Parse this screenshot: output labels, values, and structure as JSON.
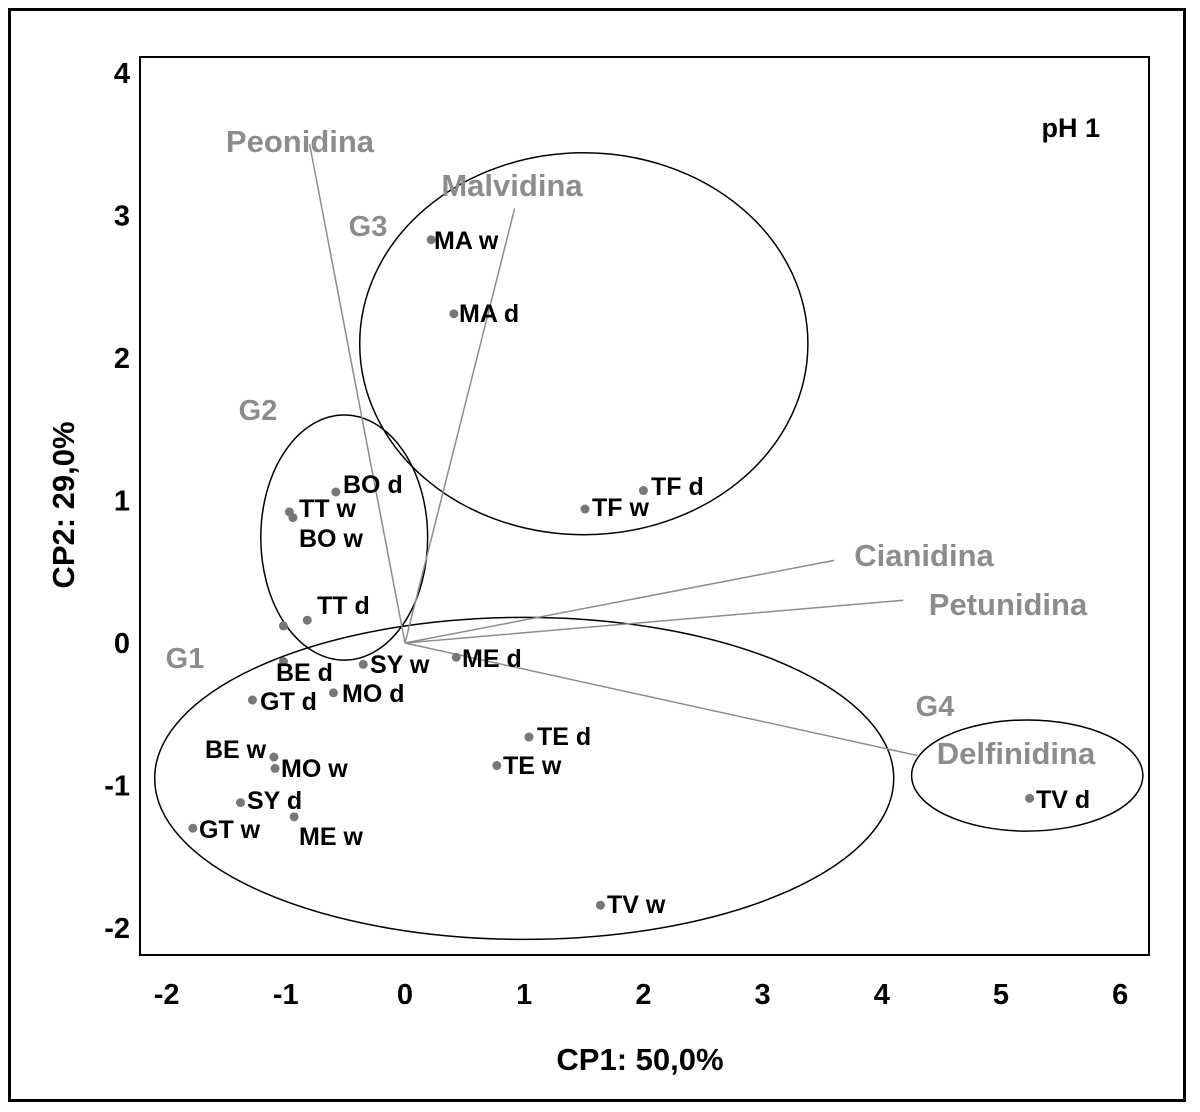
{
  "chart_data": {
    "type": "scatter",
    "annotation": "pH 1",
    "xlabel": "CP1: 50,0%",
    "ylabel": "CP2: 29,0%",
    "xlim": [
      -2.2,
      6.3
    ],
    "ylim": [
      -2.2,
      4.05
    ],
    "xticks": [
      "-2",
      "-1",
      "0",
      "1",
      "2",
      "3",
      "4",
      "5",
      "6"
    ],
    "yticks": [
      "4",
      "3",
      "2",
      "1",
      "0",
      "-1",
      "-2"
    ],
    "points": [
      {
        "label": "MA w",
        "x": 0.22,
        "y": 2.83
      },
      {
        "label": "MA d",
        "x": 0.41,
        "y": 2.31
      },
      {
        "label": "TF d",
        "x": 2.0,
        "y": 1.07
      },
      {
        "label": "TF w",
        "x": 1.51,
        "y": 0.94
      },
      {
        "label": "BO d",
        "x": -0.58,
        "y": 1.06
      },
      {
        "label": "TT w",
        "x": -0.97,
        "y": 0.92
      },
      {
        "label": "BO w",
        "x": -0.94,
        "y": 0.88
      },
      {
        "label": "TT d",
        "x": -0.82,
        "y": 0.16
      },
      {
        "label": "",
        "x": -1.02,
        "y": 0.12
      },
      {
        "label": "BE d",
        "x": -1.02,
        "y": -0.13
      },
      {
        "label": "SY w",
        "x": -0.35,
        "y": -0.15
      },
      {
        "label": "ME d",
        "x": 0.43,
        "y": -0.1
      },
      {
        "label": "GT d",
        "x": -1.28,
        "y": -0.4
      },
      {
        "label": "MO d",
        "x": -0.6,
        "y": -0.35
      },
      {
        "label": "TE d",
        "x": 1.04,
        "y": -0.66
      },
      {
        "label": "TE w",
        "x": 0.77,
        "y": -0.86
      },
      {
        "label": "BE w",
        "x": -1.1,
        "y": -0.8
      },
      {
        "label": "MO w",
        "x": -1.09,
        "y": -0.88
      },
      {
        "label": "SY d",
        "x": -1.38,
        "y": -1.12
      },
      {
        "label": "ME w",
        "x": -0.93,
        "y": -1.22
      },
      {
        "label": "GT w",
        "x": -1.78,
        "y": -1.3
      },
      {
        "label": "TV w",
        "x": 1.64,
        "y": -1.84
      },
      {
        "label": "TV d",
        "x": 5.24,
        "y": -1.09
      }
    ],
    "loadings": [
      {
        "label": "Peonidina",
        "x": -0.8,
        "y": 3.5
      },
      {
        "label": "Malvidina",
        "x": 0.92,
        "y": 3.05
      },
      {
        "label": "Cianidina",
        "x": 3.6,
        "y": 0.58
      },
      {
        "label": "Petunidina",
        "x": 4.18,
        "y": 0.3
      },
      {
        "label": "Delfinidina",
        "x": 4.3,
        "y": -0.79
      }
    ],
    "groups": [
      {
        "label": "G1",
        "cx": 1.0,
        "cy": -0.95,
        "rx": 3.1,
        "ry": 1.13
      },
      {
        "label": "G2",
        "cx": -0.51,
        "cy": 0.74,
        "rx": 0.7,
        "ry": 0.86
      },
      {
        "label": "G3",
        "cx": 1.5,
        "cy": 2.1,
        "rx": 1.88,
        "ry": 1.34
      },
      {
        "label": "G4",
        "cx": 5.22,
        "cy": -0.93,
        "rx": 0.97,
        "ry": 0.39
      }
    ],
    "grid": false
  }
}
